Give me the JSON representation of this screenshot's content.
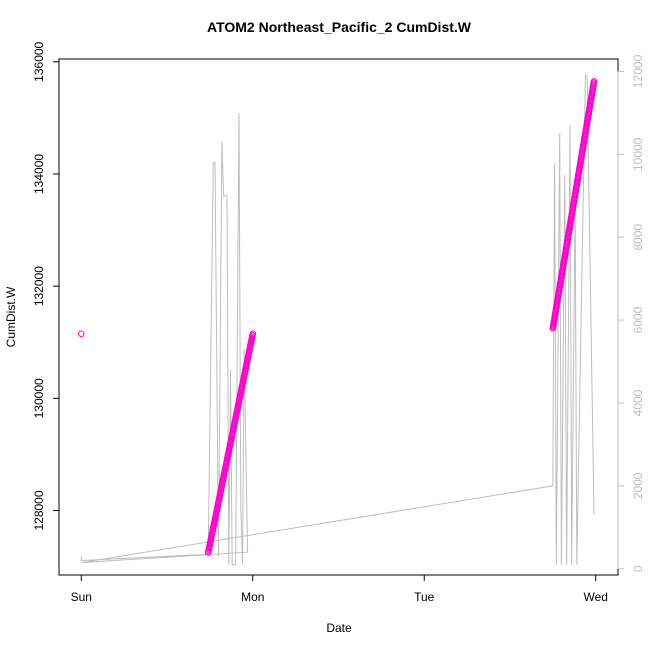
{
  "chart_data": {
    "type": "scatter",
    "title": "ATOM2 Northeast_Pacific_2 CumDist.W",
    "xlabel": "Date",
    "ylabel": "CumDist.W",
    "x_axis_ticks": [
      "Sun",
      "Mon",
      "Tue",
      "Wed"
    ],
    "x_axis_ticks_note": "day index: Sun=0, Mon=1, Tue=2, Wed=3",
    "xlim": [
      -0.13,
      3.13
    ],
    "ylim_left": [
      126850,
      136050
    ],
    "yticks_left": [
      128000,
      130000,
      132000,
      134000,
      136000
    ],
    "ylim_right": [
      -150,
      12300
    ],
    "yticks_right": [
      0,
      2000,
      4000,
      6000,
      8000,
      10000,
      12000
    ],
    "grid": false,
    "series": [
      {
        "axis": "left",
        "marker": "open-circle",
        "color": "#ff00cc",
        "segments": [
          {
            "x0": 0.0,
            "x1": 0.0,
            "y0": 131150,
            "y1": 131150,
            "n": 1
          },
          {
            "x0": 0.74,
            "x1": 1.0,
            "y0": 127250,
            "y1": 131150,
            "n": 150
          },
          {
            "x0": 2.75,
            "x1": 2.99,
            "y0": 131250,
            "y1": 135650,
            "n": 190
          }
        ]
      },
      {
        "axis": "right",
        "line": true,
        "color": "#bdbdbd",
        "points": [
          [
            0.0,
            300
          ],
          [
            0.0,
            200
          ],
          [
            0.74,
            350
          ],
          [
            0.77,
            9800
          ],
          [
            0.78,
            9800
          ],
          [
            0.8,
            300
          ],
          [
            0.82,
            10300
          ],
          [
            0.83,
            9000
          ],
          [
            0.85,
            9000
          ],
          [
            0.86,
            100
          ],
          [
            0.87,
            4800
          ],
          [
            0.88,
            100
          ],
          [
            0.9,
            100
          ],
          [
            0.92,
            11000
          ],
          [
            0.93,
            1500
          ],
          [
            0.94,
            100
          ],
          [
            0.95,
            5300
          ],
          [
            0.97,
            400
          ],
          [
            0.0,
            150
          ],
          [
            2.75,
            2000
          ],
          [
            2.76,
            9800
          ],
          [
            2.77,
            100
          ],
          [
            2.79,
            10500
          ],
          [
            2.8,
            100
          ],
          [
            2.82,
            9500
          ],
          [
            2.83,
            100
          ],
          [
            2.85,
            10700
          ],
          [
            2.86,
            100
          ],
          [
            2.88,
            9000
          ],
          [
            2.89,
            100
          ],
          [
            2.94,
            11900
          ],
          [
            2.95,
            11900
          ],
          [
            2.99,
            1300
          ]
        ]
      }
    ]
  }
}
